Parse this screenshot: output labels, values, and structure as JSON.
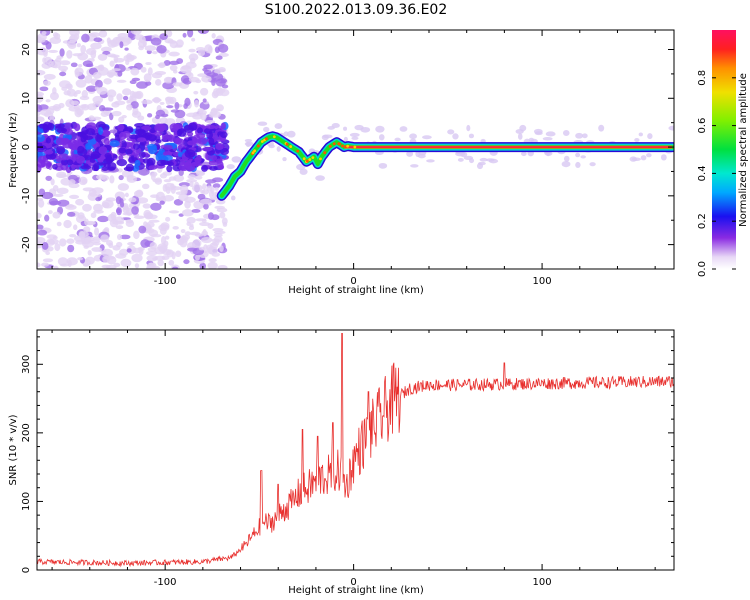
{
  "title": "S100.2022.013.09.36.E02",
  "chart_data": [
    {
      "type": "heatmap",
      "xlabel": "Height of straight line (km)",
      "ylabel": "Frequency (Hz)",
      "xlim": [
        -168,
        170
      ],
      "ylim": [
        -25,
        24
      ],
      "xticks": [
        -100,
        0,
        100
      ],
      "yticks": [
        -20,
        -10,
        0,
        10,
        20
      ],
      "ridge": {
        "x": [
          -70,
          -68,
          -66,
          -63,
          -60,
          -57,
          -55,
          -53,
          -51,
          -49,
          -47,
          -45,
          -43,
          -41,
          -39,
          -37,
          -35,
          -33,
          -31,
          -29,
          -27,
          -25,
          -23,
          -21,
          -19,
          -17,
          -15,
          -13,
          -11,
          -9,
          -7,
          -5,
          -3,
          0,
          170
        ],
        "y": [
          -10,
          -9,
          -8,
          -6,
          -5,
          -3,
          -2,
          -1,
          0,
          1,
          1.5,
          2,
          2.2,
          2,
          1.5,
          1,
          0.5,
          0,
          -0.5,
          -1,
          -2,
          -3,
          -2.5,
          -2,
          -3.5,
          -2,
          -1,
          0,
          0.5,
          1,
          0.5,
          0,
          0.2,
          0,
          0
        ]
      },
      "colorbar": {
        "label": "Normalized spectral amplitude",
        "range": [
          0,
          1
        ],
        "ticks": [
          "0.0",
          "0.2",
          "0.4",
          "0.6",
          "0.8"
        ]
      }
    },
    {
      "type": "line",
      "xlabel": "Height of straight line (km)",
      "ylabel": "SNR (10 * v/v)",
      "xlim": [
        -168,
        170
      ],
      "ylim": [
        0,
        350
      ],
      "xticks": [
        -100,
        0,
        100
      ],
      "yticks": [
        0,
        100,
        200,
        300
      ],
      "color": "#e8302e",
      "envelope": {
        "x": [
          -168,
          -120,
          -80,
          -65,
          -58,
          -52,
          -48,
          -44,
          -40,
          -36,
          -32,
          -28,
          -24,
          -20,
          -16,
          -12,
          -8,
          -6,
          -4,
          -2,
          0,
          5,
          10,
          15,
          20,
          25,
          30,
          40,
          60,
          100,
          170
        ],
        "y": [
          12,
          10,
          12,
          18,
          35,
          55,
          70,
          68,
          80,
          90,
          100,
          115,
          120,
          130,
          135,
          140,
          145,
          140,
          120,
          140,
          160,
          185,
          205,
          225,
          245,
          255,
          265,
          270,
          270,
          272,
          275
        ]
      },
      "spikes": [
        {
          "x": -49,
          "y": 145
        },
        {
          "x": -40,
          "y": 125
        },
        {
          "x": -27,
          "y": 205
        },
        {
          "x": -19,
          "y": 195
        },
        {
          "x": -11,
          "y": 215
        },
        {
          "x": -6,
          "y": 345
        },
        {
          "x": 8,
          "y": 260
        },
        {
          "x": 80,
          "y": 302
        }
      ]
    }
  ]
}
